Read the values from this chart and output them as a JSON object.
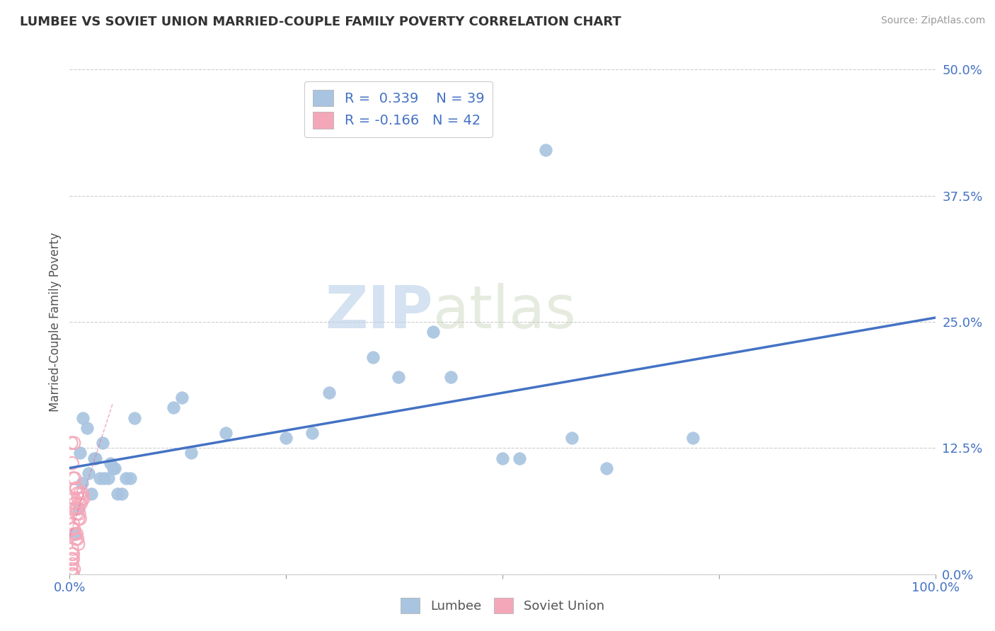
{
  "title": "LUMBEE VS SOVIET UNION MARRIED-COUPLE FAMILY POVERTY CORRELATION CHART",
  "source": "Source: ZipAtlas.com",
  "ylabel": "Married-Couple Family Poverty",
  "xlim": [
    0.0,
    1.0
  ],
  "ylim": [
    0.0,
    0.5
  ],
  "yticks": [
    0.0,
    0.125,
    0.25,
    0.375,
    0.5
  ],
  "ytick_labels": [
    "0.0%",
    "12.5%",
    "25.0%",
    "37.5%",
    "50.0%"
  ],
  "xticks": [
    0.0,
    0.25,
    0.5,
    0.75,
    1.0
  ],
  "xtick_labels": [
    "0.0%",
    "",
    "",
    "",
    "100.0%"
  ],
  "lumbee_R": 0.339,
  "lumbee_N": 39,
  "soviet_R": -0.166,
  "soviet_N": 42,
  "lumbee_color": "#a8c4e0",
  "soviet_color": "#f4a7b9",
  "lumbee_line_color": "#4472c4",
  "watermark_zip": "ZIP",
  "watermark_atlas": "atlas",
  "lumbee_points": [
    [
      0.005,
      0.04
    ],
    [
      0.01,
      0.065
    ],
    [
      0.012,
      0.12
    ],
    [
      0.014,
      0.09
    ],
    [
      0.015,
      0.155
    ],
    [
      0.02,
      0.145
    ],
    [
      0.022,
      0.1
    ],
    [
      0.025,
      0.08
    ],
    [
      0.028,
      0.115
    ],
    [
      0.03,
      0.115
    ],
    [
      0.035,
      0.095
    ],
    [
      0.038,
      0.13
    ],
    [
      0.04,
      0.095
    ],
    [
      0.045,
      0.095
    ],
    [
      0.047,
      0.11
    ],
    [
      0.05,
      0.105
    ],
    [
      0.052,
      0.105
    ],
    [
      0.055,
      0.08
    ],
    [
      0.06,
      0.08
    ],
    [
      0.065,
      0.095
    ],
    [
      0.07,
      0.095
    ],
    [
      0.075,
      0.155
    ],
    [
      0.12,
      0.165
    ],
    [
      0.13,
      0.175
    ],
    [
      0.14,
      0.12
    ],
    [
      0.18,
      0.14
    ],
    [
      0.25,
      0.135
    ],
    [
      0.28,
      0.14
    ],
    [
      0.3,
      0.18
    ],
    [
      0.35,
      0.215
    ],
    [
      0.38,
      0.195
    ],
    [
      0.42,
      0.24
    ],
    [
      0.44,
      0.195
    ],
    [
      0.5,
      0.115
    ],
    [
      0.52,
      0.115
    ],
    [
      0.58,
      0.135
    ],
    [
      0.62,
      0.105
    ],
    [
      0.72,
      0.135
    ],
    [
      0.55,
      0.42
    ]
  ],
  "soviet_points": [
    [
      0.002,
      0.13
    ],
    [
      0.003,
      0.11
    ],
    [
      0.004,
      0.095
    ],
    [
      0.005,
      0.13
    ],
    [
      0.006,
      0.095
    ],
    [
      0.007,
      0.085
    ],
    [
      0.008,
      0.085
    ],
    [
      0.009,
      0.08
    ],
    [
      0.01,
      0.075
    ],
    [
      0.011,
      0.07
    ],
    [
      0.012,
      0.08
    ],
    [
      0.013,
      0.07
    ],
    [
      0.014,
      0.075
    ],
    [
      0.015,
      0.08
    ],
    [
      0.016,
      0.075
    ],
    [
      0.004,
      0.065
    ],
    [
      0.005,
      0.075
    ],
    [
      0.006,
      0.07
    ],
    [
      0.007,
      0.065
    ],
    [
      0.008,
      0.06
    ],
    [
      0.009,
      0.065
    ],
    [
      0.01,
      0.055
    ],
    [
      0.011,
      0.06
    ],
    [
      0.012,
      0.055
    ],
    [
      0.003,
      0.045
    ],
    [
      0.004,
      0.05
    ],
    [
      0.005,
      0.045
    ],
    [
      0.006,
      0.04
    ],
    [
      0.007,
      0.035
    ],
    [
      0.008,
      0.04
    ],
    [
      0.009,
      0.035
    ],
    [
      0.01,
      0.03
    ],
    [
      0.003,
      0.025
    ],
    [
      0.004,
      0.02
    ],
    [
      0.002,
      0.015
    ],
    [
      0.003,
      0.01
    ],
    [
      0.002,
      0.005
    ],
    [
      0.004,
      0.0
    ],
    [
      0.005,
      0.005
    ],
    [
      0.002,
      0.0
    ],
    [
      0.003,
      0.02
    ],
    [
      0.004,
      0.015
    ]
  ]
}
